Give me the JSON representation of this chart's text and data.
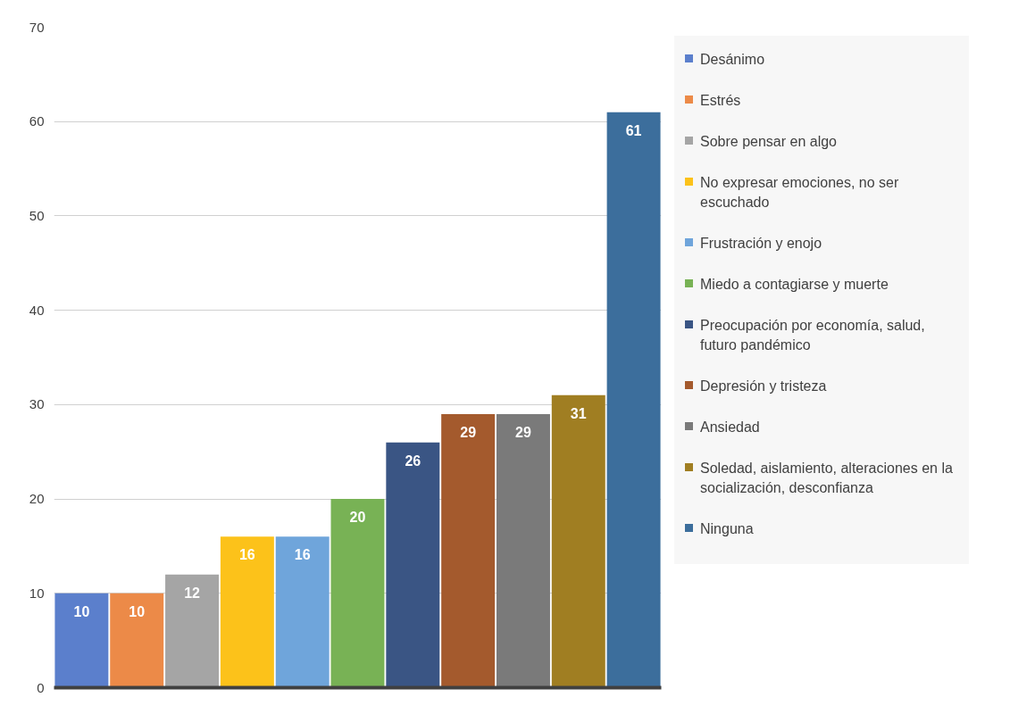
{
  "chart_data": {
    "type": "bar",
    "categories": [
      null,
      null,
      null,
      null,
      null,
      null,
      null,
      null,
      null,
      null,
      null
    ],
    "series": [
      {
        "name": "Desánimo",
        "color": "#5b7fcc",
        "values": [
          10,
          null,
          null,
          null,
          null,
          null,
          null,
          null,
          null,
          null,
          null
        ]
      },
      {
        "name": "Estrés",
        "color": "#ec8a48",
        "values": [
          null,
          10,
          null,
          null,
          null,
          null,
          null,
          null,
          null,
          null,
          null
        ]
      },
      {
        "name": "Sobre pensar en algo",
        "color": "#a5a5a5",
        "values": [
          null,
          null,
          12,
          null,
          null,
          null,
          null,
          null,
          null,
          null,
          null
        ]
      },
      {
        "name": "No expresar emociones, no ser escuchado",
        "color": "#fcc21a",
        "values": [
          null,
          null,
          null,
          16,
          null,
          null,
          null,
          null,
          null,
          null,
          null
        ]
      },
      {
        "name": "Frustración y enojo",
        "color": "#6fa5db",
        "values": [
          null,
          null,
          null,
          null,
          16,
          null,
          null,
          null,
          null,
          null,
          null
        ]
      },
      {
        "name": "Miedo a contagiarse y muerte",
        "color": "#78b255",
        "values": [
          null,
          null,
          null,
          null,
          null,
          20,
          null,
          null,
          null,
          null,
          null
        ]
      },
      {
        "name": "Preocupación por economía, salud, futuro pandémico",
        "color": "#3a5584",
        "values": [
          null,
          null,
          null,
          null,
          null,
          null,
          26,
          null,
          null,
          null,
          null
        ]
      },
      {
        "name": "Depresión y tristeza",
        "color": "#a45a2d",
        "values": [
          null,
          null,
          null,
          null,
          null,
          null,
          null,
          29,
          null,
          null,
          null
        ]
      },
      {
        "name": "Ansiedad",
        "color": "#7a7a7a",
        "values": [
          null,
          null,
          null,
          null,
          null,
          null,
          null,
          null,
          29,
          null,
          null
        ]
      },
      {
        "name": "Soledad, aislamiento, alteraciones en la socialización, desconfianza",
        "color": "#a07e22",
        "values": [
          null,
          null,
          null,
          null,
          null,
          null,
          null,
          null,
          null,
          31,
          null
        ]
      },
      {
        "name": "Ninguna",
        "color": "#3c6e9c",
        "values": [
          null,
          null,
          null,
          null,
          null,
          null,
          null,
          null,
          null,
          null,
          61
        ]
      }
    ],
    "ylim": [
      0,
      70
    ],
    "yticks": [
      0,
      10,
      20,
      30,
      40,
      50,
      60,
      70
    ],
    "grid": "y",
    "legend": "right",
    "data_labels": true,
    "tick_labels": "y"
  }
}
